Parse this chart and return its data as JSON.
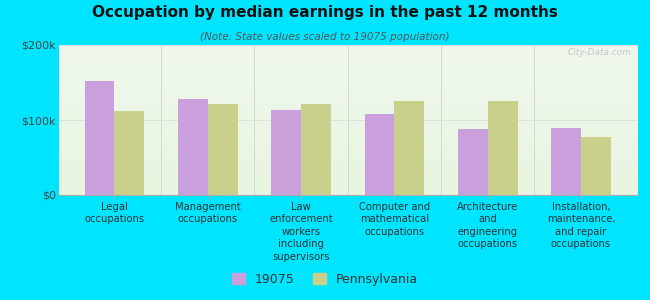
{
  "title": "Occupation by median earnings in the past 12 months",
  "subtitle": "(Note: State values scaled to 19075 population)",
  "categories": [
    "Legal\noccupations",
    "Management\noccupations",
    "Law\nenforcement\nworkers\nincluding\nsupervisors",
    "Computer and\nmathematical\noccupations",
    "Architecture\nand\nengineering\noccupations",
    "Installation,\nmaintenance,\nand repair\noccupations"
  ],
  "values_19075": [
    152000,
    128000,
    113000,
    108000,
    88000,
    90000
  ],
  "values_pa": [
    112000,
    122000,
    122000,
    125000,
    125000,
    78000
  ],
  "color_19075": "#c9a0dc",
  "color_pa": "#c8d08c",
  "ylim": [
    0,
    200000
  ],
  "ytick_labels": [
    "$0",
    "$100k",
    "$200k"
  ],
  "background_color": "#00e5ff",
  "legend_label_19075": "19075",
  "legend_label_pa": "Pennsylvania",
  "watermark": "City-Data.com",
  "bar_width": 0.32
}
